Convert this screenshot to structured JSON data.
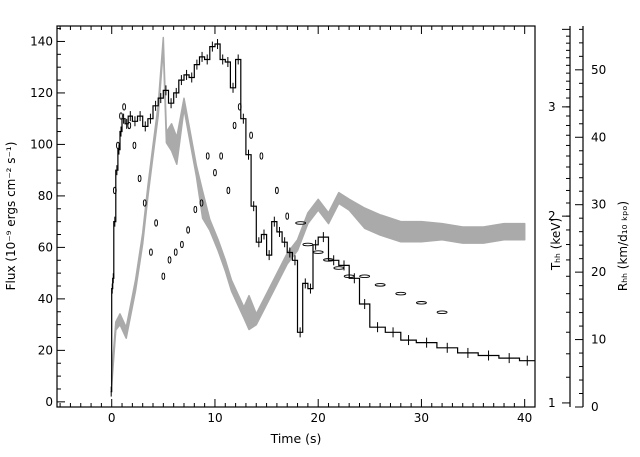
{
  "chart_data": {
    "type": "line",
    "title": "",
    "xlabel": "Time (s)",
    "ylabel_left": "Flux (10⁻⁹ ergs cm⁻² s⁻¹)",
    "ylabel_right_inner": "Tₕₕ (keV)",
    "ylabel_right_outer": "Rₕₕ (km/d₁₀ ₖₚₒ)",
    "xlim": [
      -5.3,
      41
    ],
    "ylim_left": [
      -2,
      146
    ],
    "ylim_right_outer": [
      0,
      56.5
    ],
    "x_ticks": [
      "0",
      "10",
      "20",
      "30",
      "40"
    ],
    "y_ticks_left": [
      "0",
      "20",
      "40",
      "60",
      "80",
      "100",
      "120",
      "140"
    ],
    "y_ticks_right_inner": [
      "1",
      "2",
      "3"
    ],
    "y_ticks_right_outer": [
      "0",
      "10",
      "20",
      "30",
      "40",
      "50"
    ],
    "grid": false,
    "legend": "none",
    "series": [
      {
        "name": "",
        "style": "histogram",
        "color": "#000000",
        "x": [
          -0.1,
          0.0,
          0.1,
          0.2,
          0.4,
          0.6,
          0.8,
          1.0,
          1.3,
          1.6,
          2.0,
          2.5,
          3.0,
          3.5,
          4.0,
          4.5,
          5.0,
          5.5,
          6.0,
          6.5,
          7.0,
          7.5,
          8.0,
          8.5,
          9.0,
          9.5,
          10.0,
          10.5,
          11.0,
          11.5,
          12.0,
          12.5,
          13.0,
          13.5,
          14.0,
          14.5,
          15.0,
          15.5,
          16.0,
          16.5,
          17.0,
          17.5,
          18.0,
          18.5,
          19.0,
          19.5,
          20.0,
          21.0,
          22.0,
          23.0,
          24.0,
          25.0,
          26.5,
          28.0,
          29.5,
          31.5,
          33.5,
          35.5,
          37.5,
          39.5
        ],
        "values": [
          4,
          44,
          48,
          70,
          90,
          98,
          105,
          110,
          108,
          111,
          109,
          111,
          107,
          110,
          115,
          118,
          121,
          116,
          120,
          125,
          127,
          126,
          131,
          134,
          133,
          138,
          139,
          133,
          132,
          122,
          133,
          110,
          96,
          76,
          62,
          65,
          57,
          70,
          66,
          62,
          58,
          55,
          27,
          46,
          44,
          61,
          64,
          55,
          53,
          48,
          38,
          29,
          27,
          24,
          23,
          21,
          19,
          18,
          17,
          16
        ]
      },
      {
        "name": "",
        "style": "band",
        "color": "#aaaaaa",
        "x": [
          0.0,
          0.4,
          0.8,
          1.4,
          2.3,
          3.0,
          3.5,
          4.0,
          4.5,
          5.0,
          5.3,
          5.8,
          6.3,
          7.0,
          7.6,
          8.2,
          8.8,
          9.5,
          10.3,
          11.0,
          11.6,
          12.2,
          12.8,
          13.3,
          14.0,
          15.0,
          16.0,
          17.0,
          18.0,
          19.0,
          20.0,
          21.0,
          22.0,
          23.0,
          24.5,
          26.0,
          28.0,
          30.0,
          32.0,
          34.0,
          36.0,
          38.0,
          40.0
        ],
        "values": [
          4,
          12,
          13,
          11,
          18,
          25,
          32,
          38,
          44,
          54,
          40,
          40,
          38,
          45,
          40,
          35,
          30,
          27,
          24,
          21,
          18,
          16,
          14,
          14,
          13,
          16,
          19,
          22,
          24,
          28,
          30,
          28,
          31,
          30,
          28,
          27,
          26,
          26,
          26,
          25.5,
          25.5,
          26,
          26
        ],
        "thickness": [
          0,
          0.6,
          0.8,
          0.8,
          0.8,
          0.8,
          0.8,
          0.8,
          0.8,
          0.8,
          0.8,
          2.0,
          2.0,
          0.8,
          0.8,
          0.8,
          2.0,
          0.8,
          0.8,
          0.8,
          0.8,
          0.8,
          0.8,
          2.5,
          0.8,
          0.8,
          0.8,
          0.8,
          0.8,
          0.8,
          0.8,
          0.8,
          0.8,
          0.8,
          1.5,
          1.5,
          1.5,
          1.5,
          1.2,
          1.2,
          1.2,
          1.2,
          1.2
        ]
      },
      {
        "name": "",
        "style": "points",
        "color": "#000000",
        "x": [
          0.3,
          0.6,
          0.9,
          1.2,
          1.7,
          2.2,
          2.7,
          3.2,
          3.8,
          4.3,
          5.0,
          5.6,
          6.2,
          6.8,
          7.4,
          8.1,
          8.7,
          9.3,
          10.0,
          10.6,
          11.3,
          11.9,
          12.4,
          13.5,
          14.5,
          16.0,
          17.0,
          18.3,
          19.0,
          20.0,
          21.0,
          22.0,
          23.0,
          24.5,
          26.0,
          28.0,
          30.0,
          32.0
        ],
        "values": [
          2.2,
          2.6,
          2.9,
          3.0,
          2.8,
          2.6,
          2.3,
          2.1,
          1.75,
          1.95,
          1.6,
          1.7,
          1.75,
          1.8,
          1.9,
          2.05,
          2.1,
          2.5,
          2.35,
          2.5,
          2.2,
          2.8,
          3.0,
          2.7,
          2.5,
          2.2,
          2.0,
          1.95,
          1.8,
          1.75,
          1.7,
          1.65,
          1.6,
          1.6,
          1.55,
          1.5,
          1.45,
          1.4
        ]
      }
    ]
  }
}
